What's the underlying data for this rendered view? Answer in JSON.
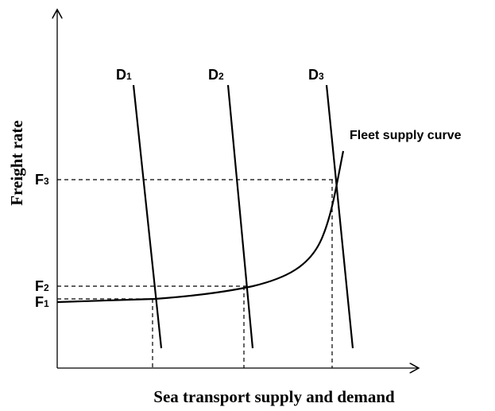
{
  "axes": {
    "y_label": "Freight rate",
    "x_label": "Sea transport supply and demand"
  },
  "demand_curves": [
    {
      "label": "D",
      "subscript": "1"
    },
    {
      "label": "D",
      "subscript": "2"
    },
    {
      "label": "D",
      "subscript": "3"
    }
  ],
  "freight_levels": [
    {
      "label": "F",
      "subscript": "1"
    },
    {
      "label": "F",
      "subscript": "2"
    },
    {
      "label": "F",
      "subscript": "3"
    }
  ],
  "supply_curve": {
    "label": "Fleet supply curve"
  }
}
